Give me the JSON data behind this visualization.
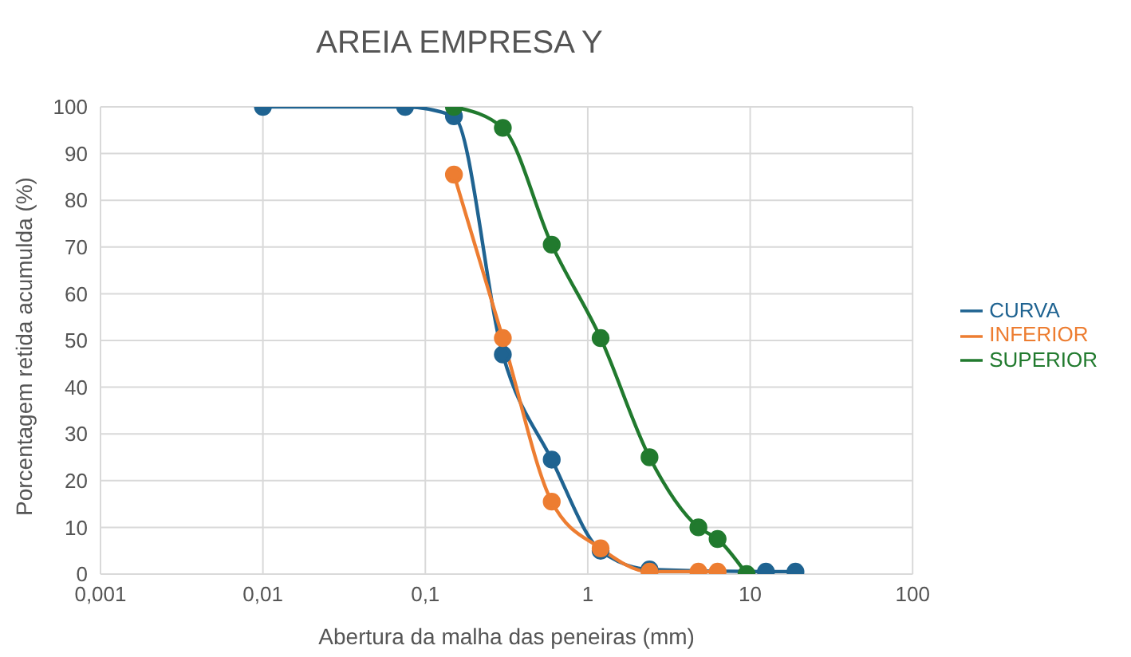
{
  "chart_data": {
    "type": "line",
    "title": "AREIA EMPRESA Y",
    "xlabel": "Abertura da malha das peneiras (mm)",
    "ylabel": "Porcentagem retida acumulda (%)",
    "log": "x",
    "xlim": [
      0.001,
      100
    ],
    "xticks": [
      {
        "value": 0.001,
        "label": "0,001"
      },
      {
        "value": 0.01,
        "label": "0,01"
      },
      {
        "value": 0.1,
        "label": "0,1"
      },
      1,
      10,
      100
    ],
    "ylim": [
      0,
      100
    ],
    "yticks": [
      0,
      10,
      20,
      30,
      40,
      50,
      60,
      70,
      80,
      90,
      100
    ],
    "grid": true,
    "legend": "right",
    "marker": "circle",
    "line_style": "solid",
    "series": [
      {
        "name": "CURVA",
        "color": "#1f6391",
        "x": [
          0.01,
          0.075,
          0.15,
          0.3,
          0.6,
          1.2,
          2.4,
          12.5,
          19
        ],
        "values": [
          100,
          100,
          98,
          47,
          24.5,
          5,
          1,
          0.5,
          0.5
        ]
      },
      {
        "name": "INFERIOR",
        "color": "#ed7d31",
        "x": [
          0.15,
          0.3,
          0.6,
          1.2,
          2.4,
          4.8,
          6.3
        ],
        "values": [
          85.5,
          50.5,
          15.5,
          5.5,
          0.5,
          0.5,
          0.5
        ]
      },
      {
        "name": "SUPERIOR",
        "color": "#217a2e",
        "x": [
          0.15,
          0.3,
          0.6,
          1.2,
          2.4,
          4.8,
          6.3,
          9.5
        ],
        "values": [
          100,
          95.5,
          70.5,
          50.5,
          25,
          10,
          7.5,
          0
        ]
      }
    ]
  }
}
